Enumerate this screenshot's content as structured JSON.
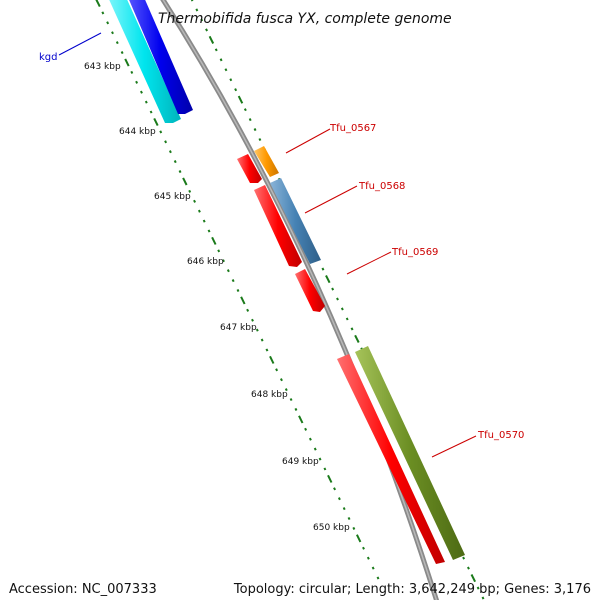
{
  "title": "Thermobifida fusca YX, complete genome",
  "footer": {
    "accession": "Accession: NC_007333",
    "summary": "Topology: circular; Length: 3,642,249 bp; Genes: 3,176"
  },
  "scale_labels": [
    {
      "text": "643 kbp"
    },
    {
      "text": "644 kbp"
    },
    {
      "text": "645 kbp"
    },
    {
      "text": "646 kbp"
    },
    {
      "text": "647 kbp"
    },
    {
      "text": "648 kbp"
    },
    {
      "text": "649 kbp"
    },
    {
      "text": "650 kbp"
    }
  ],
  "gene_labels": [
    {
      "text": "kgd",
      "color": "#0000cc"
    },
    {
      "text": "Tfu_0567",
      "color": "#cc0000"
    },
    {
      "text": "Tfu_0568",
      "color": "#cc0000"
    },
    {
      "text": "Tfu_0569",
      "color": "#cc0000"
    },
    {
      "text": "Tfu_0570",
      "color": "#cc0000"
    }
  ],
  "colors": {
    "backbone": "#8a8a8a",
    "tick": "#1a7a1a",
    "cyan": "#00e5ee",
    "blue": "#0000ee",
    "orange": "#ff9900",
    "steelblue": "#4682b4",
    "red": "#ff0000",
    "olive": "#6b8e23"
  }
}
